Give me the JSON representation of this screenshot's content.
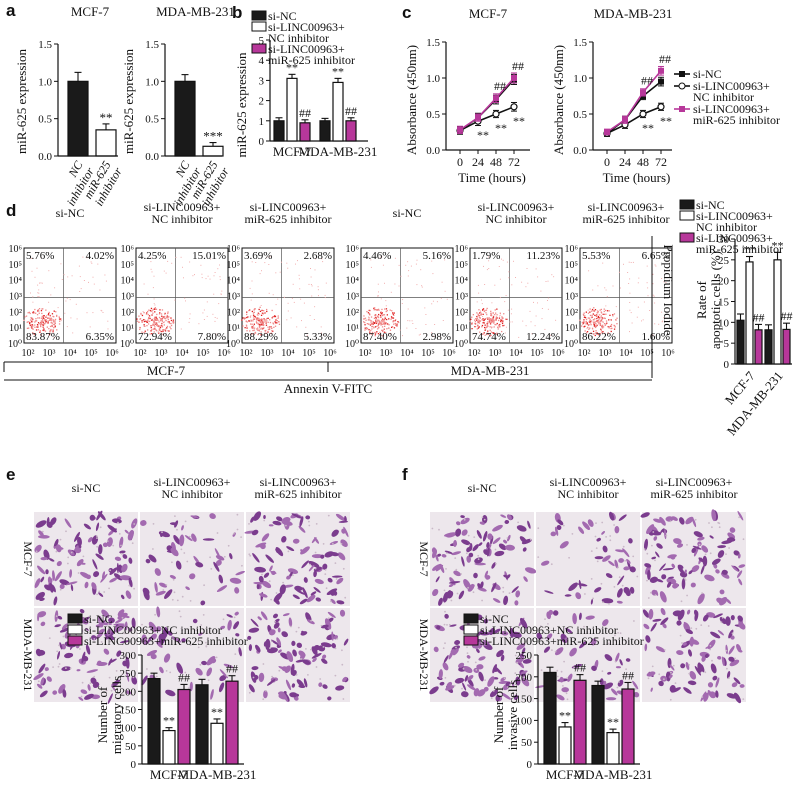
{
  "colors": {
    "black": "#1a1a1a",
    "white": "#ffffff",
    "magenta": "#b7379a"
  },
  "panel_labels": {
    "a": "a",
    "b": "b",
    "c": "c",
    "d": "d",
    "e": "e",
    "f": "f"
  },
  "panel_a": {
    "charts": [
      {
        "title": "MCF-7",
        "ylabel": "miR-625 expression",
        "categories": [
          "NC inhibitor",
          "miR-625 inhibitor"
        ],
        "values": [
          1.0,
          0.35
        ],
        "errors": [
          0.12,
          0.08
        ],
        "sig": [
          "",
          "**"
        ]
      },
      {
        "title": "MDA-MB-231",
        "ylabel": "miR-625 expression",
        "categories": [
          "NC inhibitor",
          "miR-625 inhibitor"
        ],
        "values": [
          1.0,
          0.13
        ],
        "errors": [
          0.09,
          0.05
        ],
        "sig": [
          "",
          "***"
        ]
      }
    ],
    "yticks": [
      "0.0",
      "0.5",
      "1.0",
      "1.5"
    ]
  },
  "panel_b": {
    "ylabel": "miR-625 expression",
    "yticks": [
      "0",
      "1",
      "2",
      "3",
      "4",
      "5"
    ],
    "legend": [
      "si-NC",
      "si-LINC00963+",
      "NC inhibitor",
      "si-LINC00963+",
      "miR-625 inhibitor"
    ],
    "groups": [
      "MCF-7",
      "MDA-MB-231"
    ],
    "series": [
      {
        "name": "si-NC",
        "values": [
          1.0,
          1.0
        ],
        "errors": [
          0.15,
          0.12
        ],
        "sig": [
          "",
          ""
        ]
      },
      {
        "name": "si-LINC00963+NC inhibitor",
        "values": [
          3.1,
          2.9
        ],
        "errors": [
          0.2,
          0.2
        ],
        "sig": [
          "**",
          "**"
        ]
      },
      {
        "name": "si-LINC00963+miR-625 inhibitor",
        "values": [
          0.9,
          1.0
        ],
        "errors": [
          0.15,
          0.15
        ],
        "sig": [
          "##",
          "##"
        ]
      }
    ]
  },
  "panel_c": {
    "ylabel": "Absorbance (450nm)",
    "xlabel": "Time (hours)",
    "xticks": [
      "0",
      "24",
      "48",
      "72"
    ],
    "yticks": [
      "0.0",
      "0.5",
      "1.0",
      "1.5"
    ],
    "legend": [
      "si-NC",
      "si-LINC00963+",
      "NC inhibitor",
      "si-LINC00963+",
      "miR-625 inhibitor"
    ],
    "charts": [
      {
        "title": "MCF-7",
        "series": [
          {
            "name": "si-NC",
            "values": [
              0.27,
              0.45,
              0.7,
              0.98
            ],
            "errors": [
              0.05,
              0.06,
              0.06,
              0.07
            ]
          },
          {
            "name": "si-LINC00963+NC inhibitor",
            "values": [
              0.27,
              0.4,
              0.5,
              0.6
            ],
            "errors": [
              0.05,
              0.06,
              0.05,
              0.06
            ]
          },
          {
            "name": "si-LINC00963+miR-625 inhibitor",
            "values": [
              0.28,
              0.45,
              0.72,
              1.0
            ],
            "errors": [
              0.05,
              0.05,
              0.06,
              0.07
            ]
          }
        ],
        "sig_star": [
          "",
          "**",
          "**",
          "**"
        ],
        "sig_hash": [
          "",
          "",
          "##",
          "##"
        ]
      },
      {
        "title": "MDA-MB-231",
        "series": [
          {
            "name": "si-NC",
            "values": [
              0.23,
              0.42,
              0.75,
              0.95
            ],
            "errors": [
              0.04,
              0.05,
              0.05,
              0.06
            ]
          },
          {
            "name": "si-LINC00963+NC inhibitor",
            "values": [
              0.23,
              0.35,
              0.5,
              0.6
            ],
            "errors": [
              0.04,
              0.05,
              0.05,
              0.05
            ]
          },
          {
            "name": "si-LINC00963+miR-625 inhibitor",
            "values": [
              0.25,
              0.42,
              0.8,
              1.1
            ],
            "errors": [
              0.04,
              0.05,
              0.05,
              0.06
            ]
          }
        ],
        "sig_star": [
          "",
          "",
          "**",
          "**"
        ],
        "sig_hash": [
          "",
          "",
          "##",
          "##"
        ]
      }
    ]
  },
  "panel_d": {
    "plots": [
      {
        "title": [
          "si-NC"
        ],
        "ul": "5.76%",
        "ur": "4.02%",
        "ll": "83.87%",
        "lr": "6.35%"
      },
      {
        "title": [
          "si-LINC00963+",
          "NC inhibitor"
        ],
        "ul": "4.25%",
        "ur": "15.01%",
        "ll": "72.94%",
        "lr": "7.80%"
      },
      {
        "title": [
          "si-LINC00963+",
          "miR-625 inhibitor"
        ],
        "ul": "3.69%",
        "ur": "2.68%",
        "ll": "88.29%",
        "lr": "5.33%"
      },
      {
        "title": [
          "si-NC"
        ],
        "ul": "4.46%",
        "ur": "5.16%",
        "ll": "87.40%",
        "lr": "2.98%"
      },
      {
        "title": [
          "si-LINC00963+",
          "NC inhibitor"
        ],
        "ul": "1.79%",
        "ur": "11.23%",
        "ll": "74.74%",
        "lr": "12.24%"
      },
      {
        "title": [
          "si-LINC00963+",
          "miR-625 inhibitor"
        ],
        "ul": "5.53%",
        "ur": "6.65%",
        "ll": "86.22%",
        "lr": "1.60%"
      }
    ],
    "yticks": [
      "10⁰",
      "10¹",
      "10²",
      "10³",
      "10⁴",
      "10⁵",
      "10⁶"
    ],
    "xticks": [
      "10²",
      "10³",
      "10⁴",
      "10⁵",
      "10⁶"
    ],
    "yaxis": "Propidium Iodide",
    "xaxis": "Annexin V-FITC",
    "groups": [
      "MCF-7",
      "MDA-MB-231"
    ],
    "bar": {
      "ylabel": [
        "Rate of",
        "apoptotic cells (%)"
      ],
      "yticks": [
        "0",
        "5",
        "10",
        "15",
        "20",
        "25",
        "30"
      ],
      "legend": [
        "si-NC",
        "si-LINC00963+",
        "NC inhibitor",
        "si-LINC00963+",
        "miR-625 inhibitor"
      ],
      "groups": [
        "MCF-7",
        "MDA-MB-231"
      ],
      "series": [
        {
          "name": "si-NC",
          "values": [
            10.5,
            8.2
          ],
          "errors": [
            1.5,
            1.2
          ],
          "sig": [
            "",
            ""
          ]
        },
        {
          "name": "si-LINC00963+NC inhibitor",
          "values": [
            24.5,
            25.0
          ],
          "errors": [
            1.3,
            1.8
          ],
          "sig": [
            "**",
            "**"
          ]
        },
        {
          "name": "si-LINC00963+miR-625 inhibitor",
          "values": [
            8.2,
            8.3
          ],
          "errors": [
            1.3,
            1.5
          ],
          "sig": [
            "##",
            "##"
          ]
        }
      ]
    }
  },
  "panel_e": {
    "cols": [
      [
        "si-NC"
      ],
      [
        "si-LINC00963+",
        "NC inhibitor"
      ],
      [
        "si-LINC00963+",
        "miR-625 inhibitor"
      ]
    ],
    "rows": [
      "MCF-7",
      "MDA-MB-231"
    ],
    "legend": [
      "si-NC",
      "si-LINC00963+NC inhibitor",
      "si-LINC00963+miR-625 inhibitor"
    ],
    "bar": {
      "ylabel": [
        "Number of",
        "migratory cells"
      ],
      "yticks": [
        "0",
        "50",
        "100",
        "150",
        "200",
        "250",
        "300"
      ],
      "groups": [
        "MCF-7",
        "MDA-MB-231"
      ],
      "series": [
        {
          "name": "si-NC",
          "values": [
            235,
            218
          ],
          "errors": [
            15,
            15
          ],
          "sig": [
            "",
            ""
          ]
        },
        {
          "name": "si-LINC00963+NC inhibitor",
          "values": [
            92,
            112
          ],
          "errors": [
            8,
            12
          ],
          "sig": [
            "**",
            "**"
          ]
        },
        {
          "name": "si-LINC00963+miR-625 inhibitor",
          "values": [
            205,
            228
          ],
          "errors": [
            14,
            15
          ],
          "sig": [
            "##",
            "##"
          ]
        }
      ]
    }
  },
  "panel_f": {
    "cols": [
      [
        "si-NC"
      ],
      [
        "si-LINC00963+",
        "NC inhibitor"
      ],
      [
        "si-LINC00963+",
        "miR-625 inhibitor"
      ]
    ],
    "rows": [
      "MCF-7",
      "MDA-MB-231"
    ],
    "legend": [
      "si-NC",
      "si-LINC00963+NC inhibitor",
      "si-LINC00963+miR-625 inhibitor"
    ],
    "bar": {
      "ylabel": [
        "Number of",
        "invasive cells"
      ],
      "yticks": [
        "0",
        "50",
        "100",
        "150",
        "200",
        "250"
      ],
      "groups": [
        "MCF-7",
        "MDA-MB-231"
      ],
      "series": [
        {
          "name": "si-NC",
          "values": [
            210,
            180
          ],
          "errors": [
            12,
            10
          ],
          "sig": [
            "",
            ""
          ]
        },
        {
          "name": "si-LINC00963+NC inhibitor",
          "values": [
            85,
            72
          ],
          "errors": [
            10,
            8
          ],
          "sig": [
            "**",
            "**"
          ]
        },
        {
          "name": "si-LINC00963+miR-625 inhibitor",
          "values": [
            192,
            172
          ],
          "errors": [
            13,
            15
          ],
          "sig": [
            "##",
            "##"
          ]
        }
      ]
    }
  },
  "chart_data": [
    {
      "type": "bar",
      "title": "MCF-7",
      "ylabel": "miR-625 expression",
      "ylim": [
        0,
        1.5
      ],
      "categories": [
        "NC inhibitor",
        "miR-625 inhibitor"
      ],
      "values": [
        1.0,
        0.35
      ]
    },
    {
      "type": "bar",
      "title": "MDA-MB-231",
      "ylabel": "miR-625 expression",
      "ylim": [
        0,
        1.5
      ],
      "categories": [
        "NC inhibitor",
        "miR-625 inhibitor"
      ],
      "values": [
        1.0,
        0.13
      ]
    },
    {
      "type": "bar",
      "ylabel": "miR-625 expression",
      "ylim": [
        0,
        5
      ],
      "categories": [
        "MCF-7",
        "MDA-MB-231"
      ],
      "series": [
        {
          "name": "si-NC",
          "values": [
            1.0,
            1.0
          ]
        },
        {
          "name": "si-LINC00963+NC inhibitor",
          "values": [
            3.1,
            2.9
          ]
        },
        {
          "name": "si-LINC00963+miR-625 inhibitor",
          "values": [
            0.9,
            1.0
          ]
        }
      ]
    },
    {
      "type": "line",
      "title": "MCF-7",
      "xlabel": "Time (hours)",
      "ylabel": "Absorbance (450nm)",
      "x": [
        0,
        24,
        48,
        72
      ],
      "ylim": [
        0,
        1.5
      ],
      "series": [
        {
          "name": "si-NC",
          "values": [
            0.27,
            0.45,
            0.7,
            0.98
          ]
        },
        {
          "name": "si-LINC00963+NC inhibitor",
          "values": [
            0.27,
            0.4,
            0.5,
            0.6
          ]
        },
        {
          "name": "si-LINC00963+miR-625 inhibitor",
          "values": [
            0.28,
            0.45,
            0.72,
            1.0
          ]
        }
      ]
    },
    {
      "type": "line",
      "title": "MDA-MB-231",
      "xlabel": "Time (hours)",
      "ylabel": "Absorbance (450nm)",
      "x": [
        0,
        24,
        48,
        72
      ],
      "ylim": [
        0,
        1.5
      ],
      "series": [
        {
          "name": "si-NC",
          "values": [
            0.23,
            0.42,
            0.75,
            0.95
          ]
        },
        {
          "name": "si-LINC00963+NC inhibitor",
          "values": [
            0.23,
            0.35,
            0.5,
            0.6
          ]
        },
        {
          "name": "si-LINC00963+miR-625 inhibitor",
          "values": [
            0.25,
            0.42,
            0.8,
            1.1
          ]
        }
      ]
    },
    {
      "type": "bar",
      "ylabel": "Rate of apoptotic cells (%)",
      "ylim": [
        0,
        30
      ],
      "categories": [
        "MCF-7",
        "MDA-MB-231"
      ],
      "series": [
        {
          "name": "si-NC",
          "values": [
            10.5,
            8.2
          ]
        },
        {
          "name": "si-LINC00963+NC inhibitor",
          "values": [
            24.5,
            25.0
          ]
        },
        {
          "name": "si-LINC00963+miR-625 inhibitor",
          "values": [
            8.2,
            8.3
          ]
        }
      ]
    },
    {
      "type": "bar",
      "ylabel": "Number of migratory cells",
      "ylim": [
        0,
        300
      ],
      "categories": [
        "MCF-7",
        "MDA-MB-231"
      ],
      "series": [
        {
          "name": "si-NC",
          "values": [
            235,
            218
          ]
        },
        {
          "name": "si-LINC00963+NC inhibitor",
          "values": [
            92,
            112
          ]
        },
        {
          "name": "si-LINC00963+miR-625 inhibitor",
          "values": [
            205,
            228
          ]
        }
      ]
    },
    {
      "type": "bar",
      "ylabel": "Number of invasive cells",
      "ylim": [
        0,
        250
      ],
      "categories": [
        "MCF-7",
        "MDA-MB-231"
      ],
      "series": [
        {
          "name": "si-NC",
          "values": [
            210,
            180
          ]
        },
        {
          "name": "si-LINC00963+NC inhibitor",
          "values": [
            85,
            72
          ]
        },
        {
          "name": "si-LINC00963+miR-625 inhibitor",
          "values": [
            192,
            172
          ]
        }
      ]
    }
  ]
}
